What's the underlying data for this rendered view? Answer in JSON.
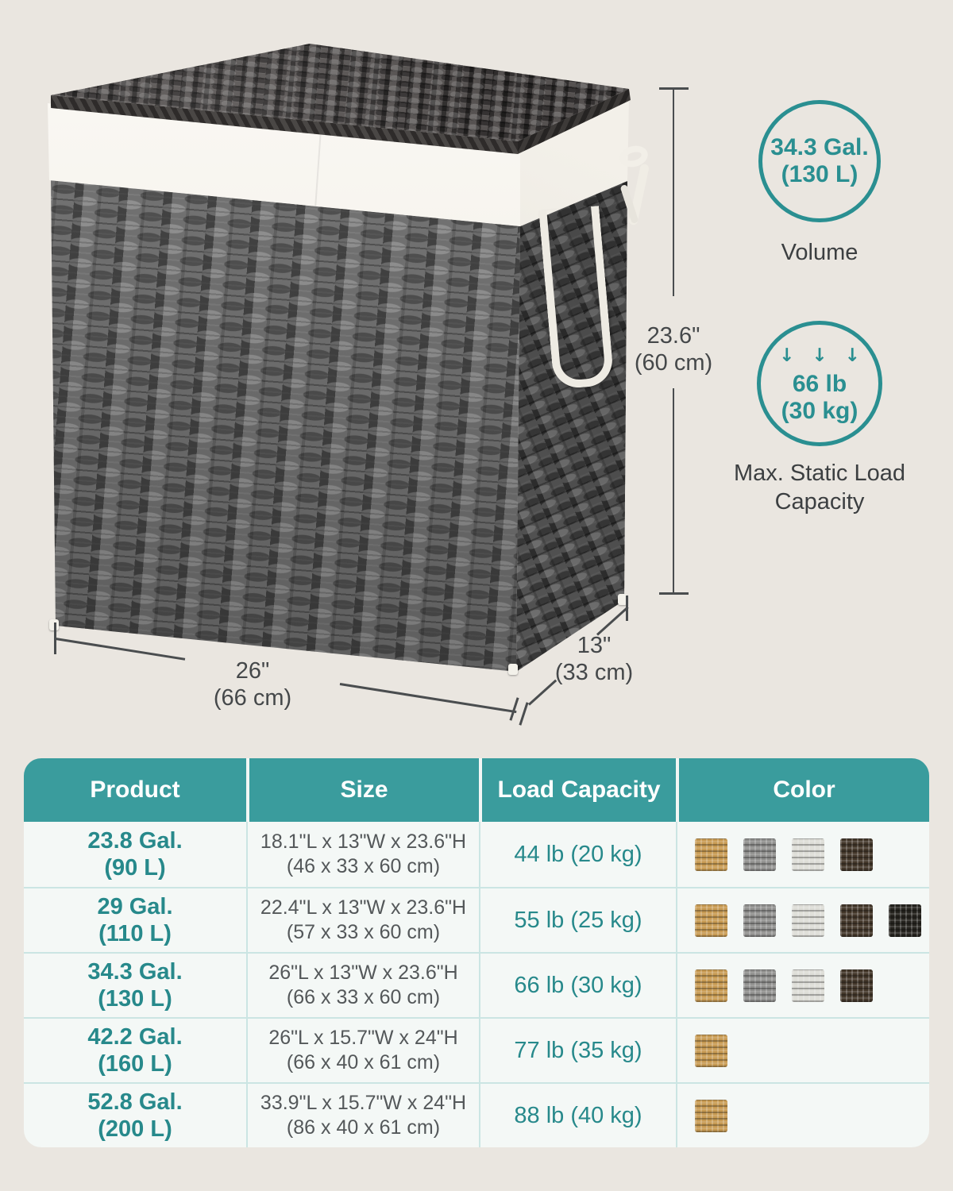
{
  "page": {
    "background": "#eae6e0",
    "accent_teal": "#2a8f91",
    "header_teal": "#3a9c9d",
    "text_dark": "#45484a"
  },
  "hero": {
    "height_label": {
      "inches": "23.6\"",
      "cm": "(60 cm)"
    },
    "width_label": {
      "inches": "26\"",
      "cm": "(66 cm)"
    },
    "depth_label": {
      "inches": "13\"",
      "cm": "(33 cm)"
    },
    "volume_badge": {
      "value": "34.3 Gal.",
      "metric": "(130 L)",
      "caption": "Volume"
    },
    "load_badge": {
      "arrows": "↓ ↓ ↓",
      "value": "66 lb",
      "metric": "(30 kg)",
      "caption": "Max. Static Load Capacity"
    }
  },
  "table": {
    "headers": [
      "Product",
      "Size",
      "Load Capacity",
      "Color"
    ],
    "rows": [
      {
        "product": [
          "23.8 Gal.",
          "(90 L)"
        ],
        "size": [
          "18.1\"L x 13\"W x 23.6\"H",
          "(46 x 33 x 60 cm)"
        ],
        "load": "44 lb (20 kg)",
        "colors": [
          "camel",
          "gray",
          "white",
          "brown"
        ]
      },
      {
        "product": [
          "29 Gal.",
          "(110 L)"
        ],
        "size": [
          "22.4\"L x 13\"W x 23.6\"H",
          "(57 x 33 x 60 cm)"
        ],
        "load": "55 lb (25 kg)",
        "colors": [
          "camel",
          "gray",
          "white",
          "brown",
          "black"
        ]
      },
      {
        "product": [
          "34.3 Gal.",
          "(130 L)"
        ],
        "size": [
          "26\"L x 13\"W x 23.6\"H",
          "(66 x 33 x 60 cm)"
        ],
        "load": "66 lb (30 kg)",
        "colors": [
          "camel",
          "gray",
          "white",
          "brown"
        ]
      },
      {
        "product": [
          "42.2 Gal.",
          "(160 L)"
        ],
        "size": [
          "26\"L x 15.7\"W x 24\"H",
          "(66 x 40 x 61 cm)"
        ],
        "load": "77 lb (35 kg)",
        "colors": [
          "camel"
        ]
      },
      {
        "product": [
          "52.8 Gal.",
          "(200 L)"
        ],
        "size": [
          "33.9\"L x 15.7\"W x 24\"H",
          "(86 x 40 x 61 cm)"
        ],
        "load": "88 lb (40 kg)",
        "colors": [
          "camel"
        ]
      }
    ]
  },
  "swatch_colors": {
    "camel": "#c79a52",
    "gray": "#8e8e8c",
    "white": "#dcdcd6",
    "brown": "#43372a",
    "black": "#26241f"
  }
}
